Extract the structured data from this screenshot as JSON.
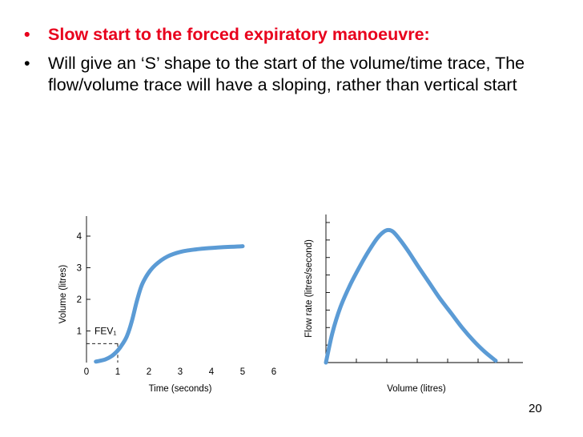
{
  "slide": {
    "bullets": [
      {
        "text": "Slow start to the forced expiratory manoeuvre:",
        "color": "#e8001c"
      },
      {
        "text": "Will give an ‘S’ shape to the start of the volume/time trace, The flow/volume trace will have a sloping, rather than vertical start",
        "color": "#000000"
      }
    ],
    "bullet_symbol": "•",
    "page_number": "20"
  },
  "chart_data": [
    {
      "type": "line",
      "xlabel": "Time (seconds)",
      "ylabel": "Volume (litres)",
      "x_ticks": [
        "0",
        "1",
        "2",
        "3",
        "4",
        "5",
        "6"
      ],
      "y_ticks": [
        "1",
        "2",
        "3",
        "4"
      ],
      "xlim": [
        0,
        6
      ],
      "ylim": [
        0,
        4.5
      ],
      "annotation": {
        "text": "FEV₁",
        "x": 1,
        "y": 0.6
      },
      "line_color": "#5b9bd5",
      "series": [
        {
          "x": [
            0.3,
            0.6,
            0.8,
            1.0,
            1.15,
            1.3,
            1.45,
            1.6,
            1.75,
            1.9,
            2.05,
            2.2,
            2.4,
            2.6,
            2.8,
            3.0,
            3.2,
            3.5,
            3.8,
            4.2,
            4.6,
            5.0
          ],
          "y": [
            0.03,
            0.1,
            0.2,
            0.38,
            0.58,
            0.85,
            1.3,
            1.9,
            2.4,
            2.7,
            2.92,
            3.08,
            3.24,
            3.36,
            3.44,
            3.5,
            3.54,
            3.58,
            3.61,
            3.64,
            3.66,
            3.68
          ]
        }
      ]
    },
    {
      "type": "line",
      "xlabel": "Volume (litres)",
      "ylabel": "Flow rate (litres/second)",
      "y_tick_count": 8,
      "line_color": "#5b9bd5",
      "series": [
        {
          "x": [
            0,
            0.2,
            0.45,
            0.75,
            1.05,
            1.35,
            1.6,
            1.8,
            1.95,
            2.1,
            2.3,
            2.55,
            2.85,
            3.2,
            3.55,
            3.9,
            4.25,
            4.6,
            4.95,
            5.3
          ],
          "y": [
            0,
            1.6,
            3.0,
            4.2,
            5.2,
            6.1,
            6.75,
            7.1,
            7.2,
            7.1,
            6.7,
            6.1,
            5.3,
            4.4,
            3.5,
            2.7,
            1.9,
            1.2,
            0.6,
            0.1
          ]
        }
      ]
    }
  ]
}
